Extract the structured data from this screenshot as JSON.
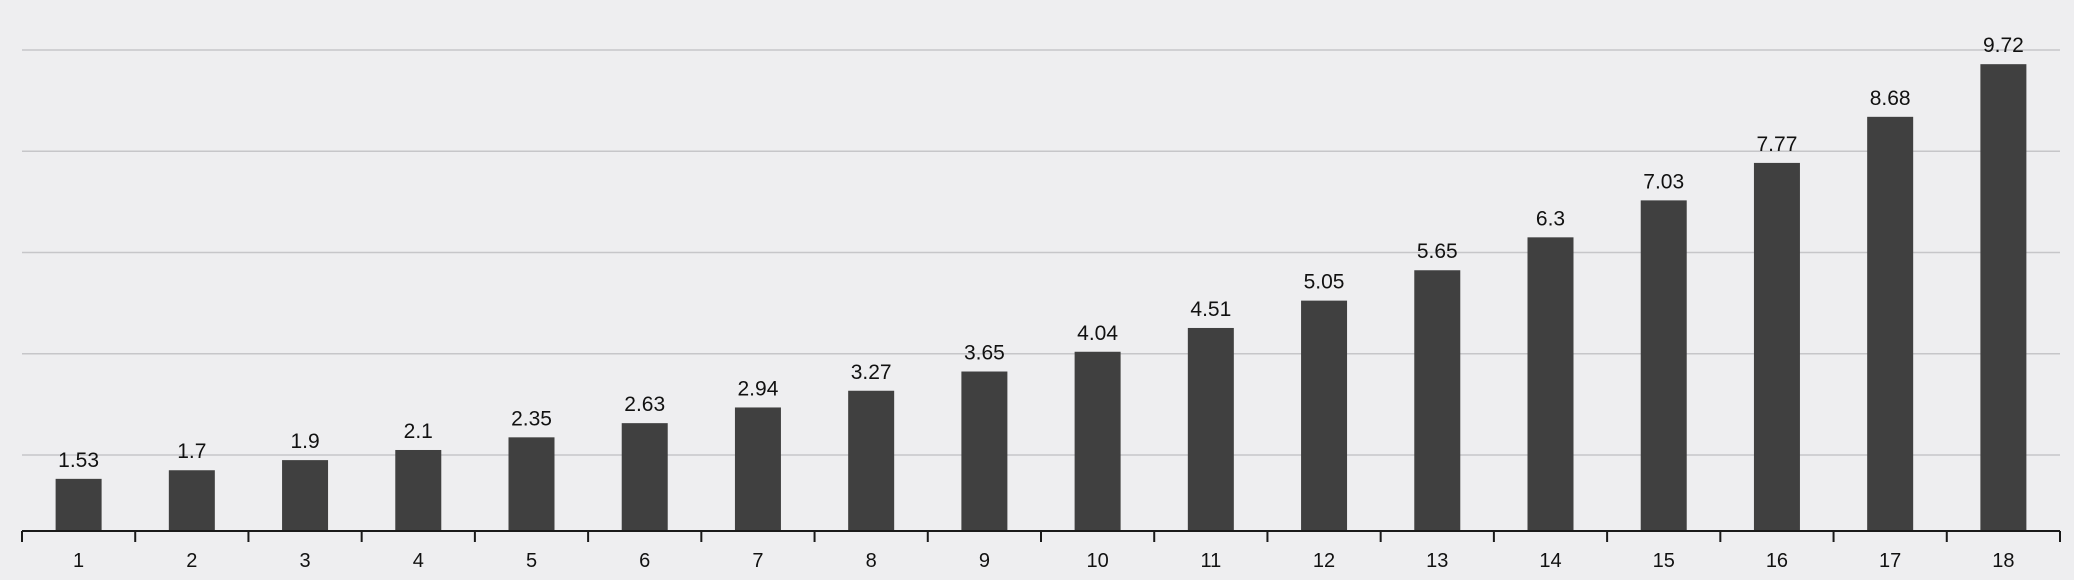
{
  "chart_data": {
    "type": "bar",
    "title": "",
    "xlabel": "",
    "ylabel": "",
    "categories": [
      "1",
      "2",
      "3",
      "4",
      "5",
      "6",
      "7",
      "8",
      "9",
      "10",
      "11",
      "12",
      "13",
      "14",
      "15",
      "16",
      "17",
      "18"
    ],
    "values": [
      1.53,
      1.7,
      1.9,
      2.1,
      2.35,
      2.63,
      2.94,
      3.27,
      3.65,
      4.04,
      4.51,
      5.05,
      5.65,
      6.3,
      7.03,
      7.77,
      8.68,
      9.72
    ],
    "value_labels": [
      "1.53",
      "1.7",
      "1.9",
      "2.1",
      "2.35",
      "2.63",
      "2.94",
      "3.27",
      "3.65",
      "4.04",
      "4.51",
      "5.05",
      "5.65",
      "6.3",
      "7.03",
      "7.77",
      "8.68",
      "9.72"
    ],
    "ylim": [
      0.5,
      10.0
    ],
    "gridlines_y": [
      2,
      4,
      6,
      8,
      10
    ],
    "grid": true,
    "legend": "none",
    "colors": {
      "background": "#eeeef0",
      "bar": "#404040",
      "grid": "#c6c6c9",
      "axis": "#1a1a1a",
      "text": "#111111"
    }
  }
}
